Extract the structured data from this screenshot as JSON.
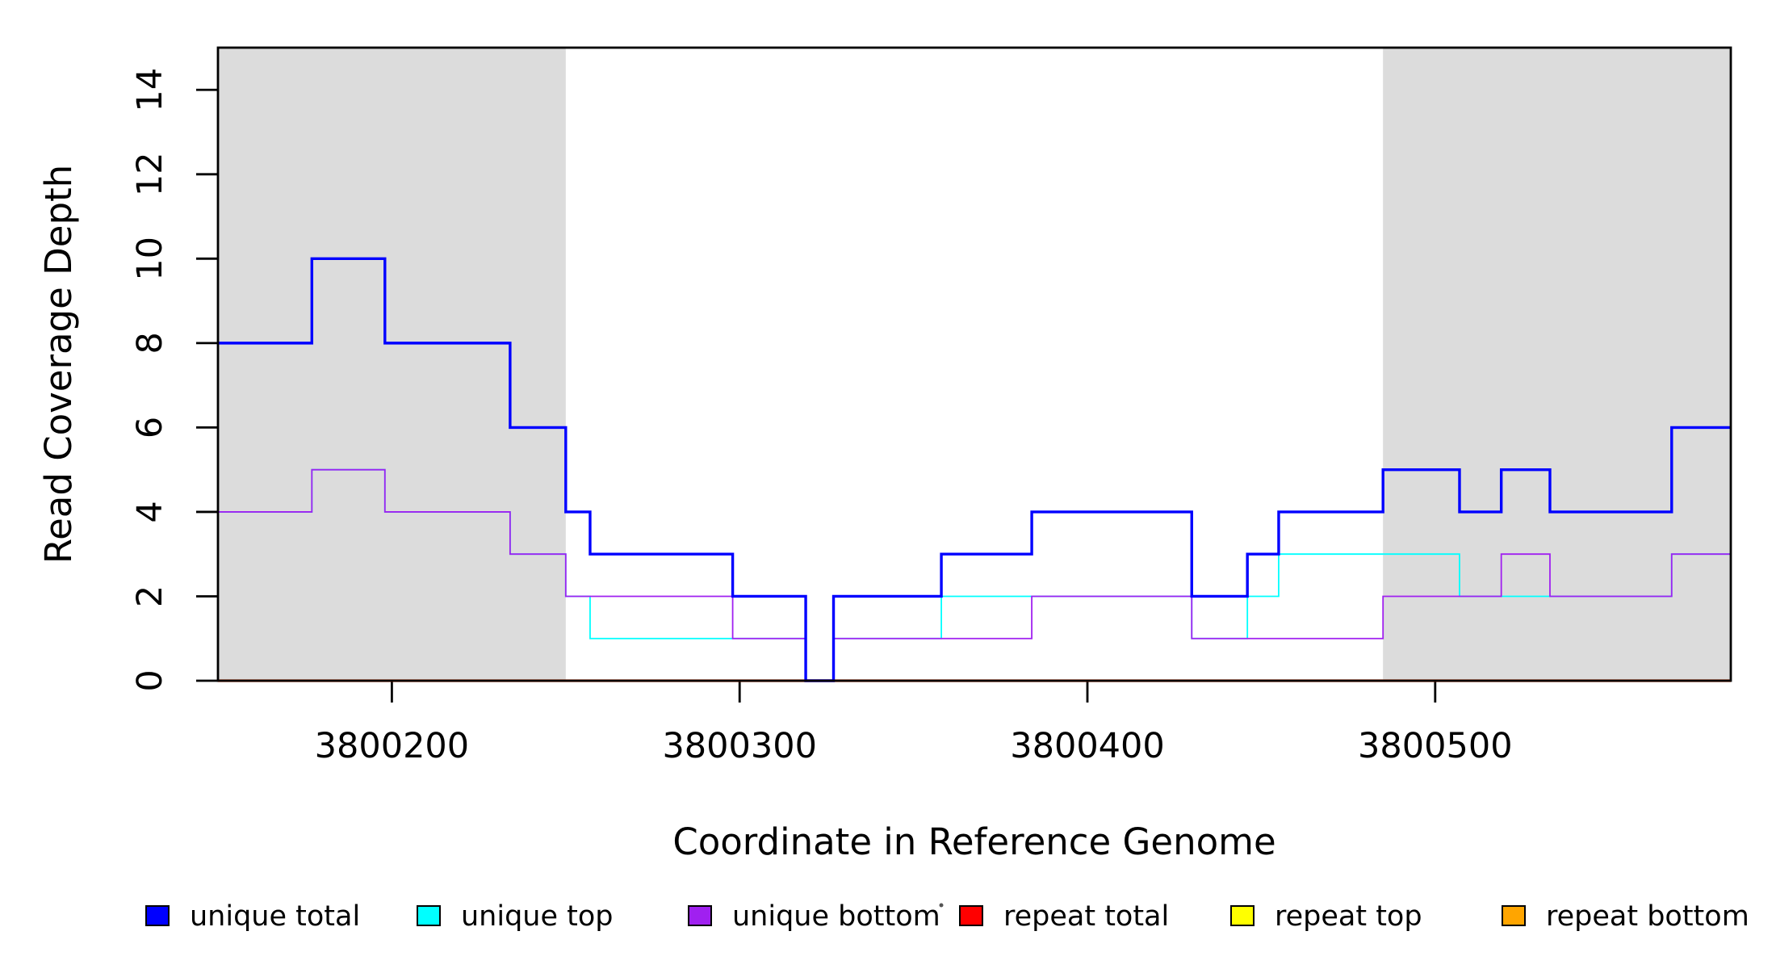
{
  "chart_data": {
    "type": "line",
    "step_mode": "post",
    "title": "",
    "xlabel": "Coordinate in Reference Genome",
    "ylabel": "Read Coverage Depth",
    "xlim": [
      3800150,
      3800585
    ],
    "ylim": [
      0,
      15
    ],
    "x_ticks": [
      3800200,
      3800300,
      3800400,
      3800500
    ],
    "y_ticks": [
      0,
      2,
      4,
      6,
      8,
      10,
      12,
      14
    ],
    "grid": false,
    "legend_position": "bottom",
    "shade_color": "#DCDCDC",
    "shaded_regions": [
      [
        3800150,
        3800250
      ],
      [
        3800485,
        3800585
      ]
    ],
    "series": [
      {
        "name": "unique total",
        "color": "#0000FF",
        "line_width": 3.4,
        "x_end": 3800585,
        "steps": [
          [
            3800150,
            8
          ],
          [
            3800177,
            10
          ],
          [
            3800198,
            8
          ],
          [
            3800234,
            6
          ],
          [
            3800250,
            4
          ],
          [
            3800257,
            3
          ],
          [
            3800298,
            2
          ],
          [
            3800319,
            0
          ],
          [
            3800327,
            2
          ],
          [
            3800358,
            3
          ],
          [
            3800384,
            4
          ],
          [
            3800430,
            2
          ],
          [
            3800446,
            3
          ],
          [
            3800455,
            4
          ],
          [
            3800485,
            5
          ],
          [
            3800507,
            4
          ],
          [
            3800519,
            5
          ],
          [
            3800533,
            4
          ],
          [
            3800568,
            6
          ]
        ]
      },
      {
        "name": "unique top",
        "color": "#00FFFF",
        "line_width": 1.8,
        "x_end": 3800585,
        "steps": [
          [
            3800150,
            4
          ],
          [
            3800177,
            5
          ],
          [
            3800198,
            4
          ],
          [
            3800234,
            3
          ],
          [
            3800250,
            2
          ],
          [
            3800257,
            1
          ],
          [
            3800319,
            0
          ],
          [
            3800327,
            1
          ],
          [
            3800358,
            2
          ],
          [
            3800430,
            1
          ],
          [
            3800446,
            2
          ],
          [
            3800455,
            3
          ],
          [
            3800507,
            2
          ],
          [
            3800568,
            3
          ]
        ]
      },
      {
        "name": "unique bottom",
        "color": "#A020F0",
        "line_width": 1.8,
        "x_end": 3800585,
        "steps": [
          [
            3800150,
            4
          ],
          [
            3800177,
            5
          ],
          [
            3800198,
            4
          ],
          [
            3800234,
            3
          ],
          [
            3800250,
            2
          ],
          [
            3800298,
            1
          ],
          [
            3800319,
            0
          ],
          [
            3800327,
            1
          ],
          [
            3800384,
            2
          ],
          [
            3800430,
            1
          ],
          [
            3800485,
            2
          ],
          [
            3800519,
            3
          ],
          [
            3800533,
            2
          ],
          [
            3800568,
            3
          ]
        ]
      },
      {
        "name": "repeat total",
        "color": "#FF0000",
        "line_width": 3.2,
        "x_end": 3800585,
        "steps": [
          [
            3800150,
            0
          ]
        ]
      },
      {
        "name": "repeat top",
        "color": "#FFFF00",
        "line_width": 2.4,
        "x_end": 3800585,
        "steps": [
          [
            3800150,
            0
          ]
        ]
      },
      {
        "name": "repeat bottom",
        "color": "#FFA500",
        "line_width": 2.6,
        "x_end": 3800585,
        "steps": [
          [
            3800150,
            0
          ]
        ]
      }
    ],
    "draw_order": [
      "repeat total",
      "repeat top",
      "repeat bottom",
      "unique top",
      "unique bottom",
      "unique total"
    ],
    "legend": {
      "items": [
        {
          "label": "unique total",
          "color": "#0000FF"
        },
        {
          "label": "unique top",
          "color": "#00FFFF"
        },
        {
          "label": "unique bottom",
          "color": "#A020F0"
        },
        {
          "label": "repeat total",
          "color": "#FF0000"
        },
        {
          "label": "repeat top",
          "color": "#FFFF00"
        },
        {
          "label": "repeat bottom",
          "color": "#FFA500"
        }
      ]
    }
  }
}
